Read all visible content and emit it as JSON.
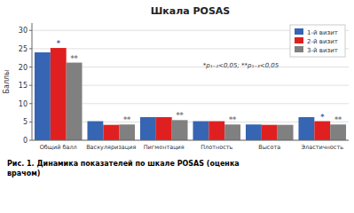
{
  "chart_data": {
    "type": "bar",
    "title": "Шкала POSAS",
    "ylabel": "Баллы",
    "categories": [
      "Общий балл",
      "Васкуляризация",
      "Пигментация",
      "Плотность",
      "Высота",
      "Эластичность"
    ],
    "series": [
      {
        "name": "1-й визит",
        "color": "#3665b3",
        "values": [
          24,
          5.2,
          6.3,
          5.2,
          4.3,
          6.3
        ]
      },
      {
        "name": "2-й визит",
        "color": "#e02020",
        "values": [
          25.2,
          4.2,
          6.3,
          5.2,
          4.2,
          5.2
        ]
      },
      {
        "name": "3-й визит",
        "color": "#808080",
        "values": [
          21.2,
          4.3,
          5.5,
          4.3,
          4.2,
          4.3
        ]
      }
    ],
    "ylim": [
      0,
      32
    ],
    "yticks": [
      0,
      5,
      10,
      15,
      20,
      25,
      30
    ],
    "grid": true,
    "legend": "upper right",
    "annotations": [
      {
        "text": "*",
        "category": "Общий балл",
        "series": "2-й визит",
        "color": "#3665b3"
      },
      {
        "text": "**",
        "category": "Общий балл",
        "series": "3-й визит",
        "color": "#808080"
      },
      {
        "text": "**",
        "category": "Васкуляризация",
        "series": "3-й визит",
        "color": "#808080"
      },
      {
        "text": "**",
        "category": "Пигментация",
        "series": "3-й визит",
        "color": "#808080"
      },
      {
        "text": "**",
        "category": "Плотность",
        "series": "3-й визит",
        "color": "#808080"
      },
      {
        "text": "*",
        "category": "Эластичность",
        "series": "2-й визит",
        "color": "#3665b3"
      },
      {
        "text": "**",
        "category": "Эластичность",
        "series": "3-й визит",
        "color": "#808080"
      },
      {
        "text": "*p₁₋₂<0,05; **p₁₋₃<0,05"
      }
    ],
    "caption": "Рис. 1. Динамика показателей по шкале POSAS (оценка\nврачом)"
  }
}
